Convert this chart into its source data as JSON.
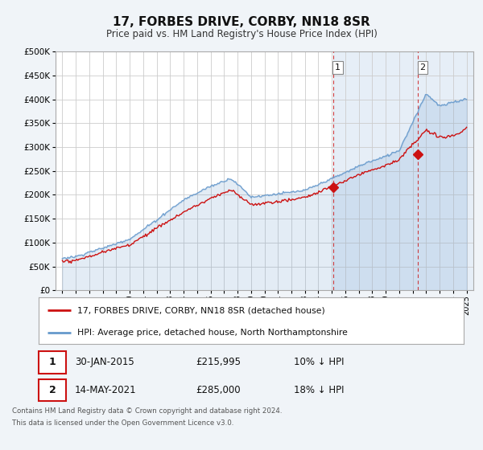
{
  "title": "17, FORBES DRIVE, CORBY, NN18 8SR",
  "subtitle": "Price paid vs. HM Land Registry's House Price Index (HPI)",
  "ylim": [
    0,
    500000
  ],
  "xlim_start": 1994.5,
  "xlim_end": 2025.5,
  "hpi_color": "#6699cc",
  "price_color": "#cc1111",
  "sale1_x": 2015.08,
  "sale1_y": 215995,
  "sale2_x": 2021.37,
  "sale2_y": 285000,
  "shade_start": 2015.08,
  "legend_line1": "17, FORBES DRIVE, CORBY, NN18 8SR (detached house)",
  "legend_line2": "HPI: Average price, detached house, North Northamptonshire",
  "ann1_label": "1",
  "ann1_date": "30-JAN-2015",
  "ann1_price": "£215,995",
  "ann1_hpi": "10% ↓ HPI",
  "ann2_label": "2",
  "ann2_date": "14-MAY-2021",
  "ann2_price": "£285,000",
  "ann2_hpi": "18% ↓ HPI",
  "footnote1": "Contains HM Land Registry data © Crown copyright and database right 2024.",
  "footnote2": "This data is licensed under the Open Government Licence v3.0.",
  "bg_color": "#f0f4f8",
  "plot_bg": "#ffffff",
  "grid_color": "#cccccc",
  "shade_color": "#dce8f5"
}
